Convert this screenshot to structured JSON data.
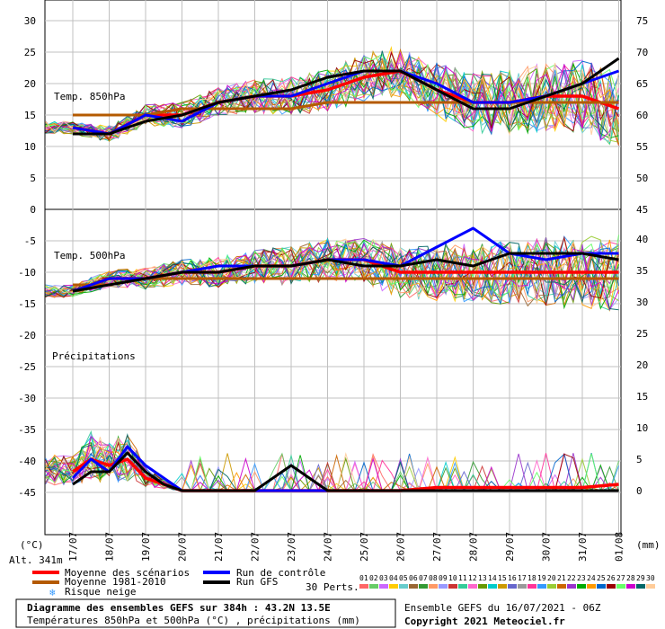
{
  "chart_data": {
    "type": "line",
    "title": "Diagramme des ensembles GEFS sur 384h : 43.2N 13.5E",
    "subtitle": "Températures 850hPa et 500hPa (°C) , précipitations (mm)",
    "run_info": "Ensemble GEFS du 16/07/2021 - 06Z",
    "copyright": "Copyright 2021 Meteociel.fr",
    "altitude": "Alt. 341m",
    "left_unit": "(°C)",
    "right_unit": "(mm)",
    "panel_labels": {
      "t850": "Temp. 850hPa",
      "t500": "Temp. 500hPa",
      "precip": "Précipitations"
    },
    "x_ticks": [
      "17/07",
      "18/07",
      "19/07",
      "20/07",
      "21/07",
      "22/07",
      "23/07",
      "24/07",
      "25/07",
      "26/07",
      "27/07",
      "28/07",
      "29/07",
      "30/07",
      "31/07",
      "01/08"
    ],
    "left_ticks_top": [
      "30",
      "25",
      "20",
      "15",
      "10",
      "5",
      "0"
    ],
    "left_ticks_bottom": [
      "-5",
      "-10",
      "-15",
      "-20",
      "-25",
      "-30",
      "-35",
      "-40",
      "-45"
    ],
    "right_ticks_top": [
      "75",
      "70",
      "65",
      "60",
      "55",
      "50",
      "45"
    ],
    "right_ticks_mid": [
      "40",
      "35",
      "30",
      "25",
      "20",
      "15",
      "10",
      "5",
      "0"
    ],
    "ylim_left": [
      -45,
      30
    ],
    "legend": {
      "moyenne_scenarios": "Moyenne des scénarios",
      "moyenne_clim": "Moyenne 1981-2010",
      "risque_neige": "Risque neige",
      "run_controle": "Run de contrôle",
      "run_gfs": "Run GFS",
      "perts_label": "30 Perts.",
      "pert_ids": [
        "01",
        "02",
        "03",
        "04",
        "05",
        "06",
        "07",
        "08",
        "09",
        "10",
        "11",
        "12",
        "13",
        "14",
        "15",
        "16",
        "17",
        "18",
        "19",
        "20",
        "21",
        "22",
        "23",
        "24",
        "25",
        "26",
        "27",
        "28",
        "29",
        "30"
      ]
    },
    "colors": {
      "mean": "#ff0000",
      "clim": "#b45a00",
      "control": "#0000ff",
      "gfs": "#000000",
      "perts": [
        "#ff6666",
        "#66cc66",
        "#cc66ff",
        "#ffcc00",
        "#66cccc",
        "#996633",
        "#339933",
        "#ff9966",
        "#9999ff",
        "#cc3333",
        "#33cc99",
        "#ff66cc",
        "#669900",
        "#00cccc",
        "#cc9900",
        "#6666cc",
        "#999999",
        "#ff3399",
        "#3399ff",
        "#99cc33",
        "#cc6600",
        "#9933cc",
        "#00aa00",
        "#ff9900",
        "#0066cc",
        "#990000",
        "#66ff66",
        "#cc00cc",
        "#006666",
        "#ffcc99"
      ]
    },
    "series": [
      {
        "name": "Moyenne des scénarios",
        "panel": "t850",
        "x": [
          0,
          1,
          2,
          3,
          4,
          5,
          6,
          7,
          8,
          9,
          10,
          11,
          12,
          13,
          14,
          15
        ],
        "values": [
          13,
          12,
          15,
          15,
          17,
          18,
          18,
          19,
          21,
          22,
          19,
          17,
          17,
          18,
          18,
          16
        ]
      },
      {
        "name": "Moyenne 1981-2010",
        "panel": "t850",
        "x": [
          0,
          1,
          2,
          3,
          4,
          5,
          6,
          7,
          8,
          9,
          10,
          11,
          12,
          13,
          14,
          15
        ],
        "values": [
          15,
          15,
          15,
          16,
          16,
          16,
          16,
          17,
          17,
          17,
          17,
          17,
          17,
          17,
          17,
          17
        ]
      },
      {
        "name": "Run de contrôle",
        "panel": "t850",
        "x": [
          0,
          1,
          2,
          3,
          4,
          5,
          6,
          7,
          8,
          9,
          10,
          11,
          12,
          13,
          14,
          15
        ],
        "values": [
          13,
          12,
          15,
          14,
          17,
          18,
          18,
          20,
          22,
          22,
          20,
          17,
          17,
          18,
          20,
          22
        ]
      },
      {
        "name": "Run GFS",
        "panel": "t850",
        "x": [
          0,
          1,
          2,
          3,
          4,
          5,
          6,
          7,
          8,
          9,
          10,
          11,
          12,
          13,
          14,
          15
        ],
        "values": [
          12,
          12,
          14,
          15,
          17,
          18,
          19,
          21,
          22,
          22,
          19,
          16,
          16,
          18,
          20,
          24
        ]
      },
      {
        "name": "Moyenne des scénarios",
        "panel": "t500",
        "x": [
          0,
          1,
          2,
          3,
          4,
          5,
          6,
          7,
          8,
          9,
          10,
          11,
          12,
          13,
          14,
          15
        ],
        "values": [
          -13,
          -11,
          -11,
          -10,
          -10,
          -9,
          -9,
          -8,
          -8,
          -10,
          -10,
          -10,
          -10,
          -10,
          -10,
          -10
        ]
      },
      {
        "name": "Moyenne 1981-2010",
        "panel": "t500",
        "x": [
          0,
          1,
          2,
          3,
          4,
          5,
          6,
          7,
          8,
          9,
          10,
          11,
          12,
          13,
          14,
          15
        ],
        "values": [
          -12,
          -12,
          -11,
          -11,
          -11,
          -11,
          -11,
          -11,
          -11,
          -11,
          -11,
          -11,
          -11,
          -11,
          -11,
          -11
        ]
      },
      {
        "name": "Run de contrôle",
        "panel": "t500",
        "x": [
          0,
          1,
          2,
          3,
          4,
          5,
          6,
          7,
          8,
          9,
          10,
          11,
          12,
          13,
          14,
          15
        ],
        "values": [
          -13,
          -11,
          -11,
          -10,
          -9,
          -9,
          -9,
          -8,
          -8,
          -9,
          -6,
          -3,
          -7,
          -8,
          -7,
          -7
        ]
      },
      {
        "name": "Run GFS",
        "panel": "t500",
        "x": [
          0,
          1,
          2,
          3,
          4,
          5,
          6,
          7,
          8,
          9,
          10,
          11,
          12,
          13,
          14,
          15
        ],
        "values": [
          -13,
          -12,
          -11,
          -10,
          -10,
          -9,
          -9,
          -8,
          -9,
          -9,
          -8,
          -9,
          -7,
          -7,
          -7,
          -8
        ]
      },
      {
        "name": "Moyenne des scénarios",
        "panel": "precip",
        "x": [
          0,
          0.5,
          1,
          1.5,
          2,
          2.5,
          3,
          4,
          5,
          6,
          7,
          8,
          9,
          10,
          11,
          12,
          13,
          14,
          15
        ],
        "values": [
          3,
          5,
          4,
          5,
          2,
          1,
          0,
          0,
          0,
          0,
          0,
          0,
          0,
          0.5,
          0.5,
          0.5,
          0.5,
          0.5,
          1
        ]
      },
      {
        "name": "Run de contrôle",
        "panel": "precip",
        "x": [
          0,
          0.5,
          1,
          1.5,
          2,
          2.5,
          3,
          4,
          5,
          6,
          7,
          8,
          9,
          10,
          11,
          12,
          13,
          14,
          15
        ],
        "values": [
          2,
          5,
          3,
          7,
          4,
          2,
          0,
          0,
          0,
          0,
          0,
          0,
          0,
          0,
          0,
          0,
          0,
          0,
          0
        ]
      },
      {
        "name": "Run GFS",
        "panel": "precip",
        "x": [
          0,
          0.5,
          1,
          1.5,
          2,
          2.5,
          3,
          4,
          5,
          6,
          7,
          8,
          9,
          10,
          11,
          12,
          13,
          14,
          15
        ],
        "values": [
          1,
          3,
          3,
          6,
          3,
          1,
          0,
          0,
          0,
          4,
          0,
          0,
          0,
          0,
          0,
          0,
          0,
          0,
          0
        ]
      }
    ]
  }
}
